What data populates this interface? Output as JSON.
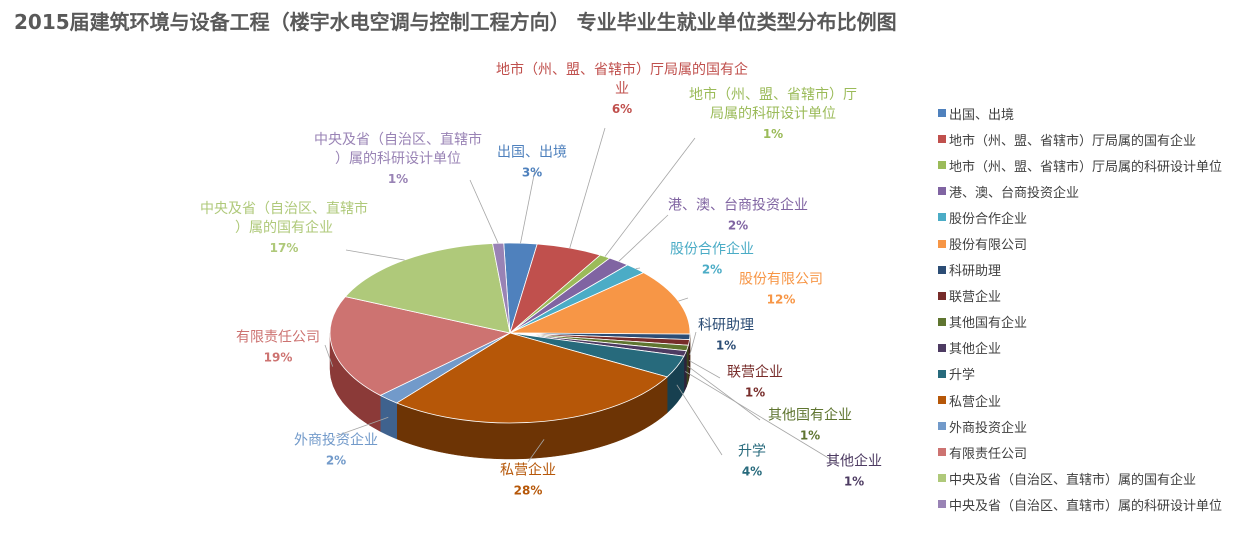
{
  "chart_data": {
    "type": "pie",
    "title": "2015届建筑环境与设备工程（楼宇水电空调与控制工程方向） 专业毕业生就业单位类型分布比例图",
    "legend_position": "right",
    "slices": [
      {
        "name": "出国、出境",
        "label": "出国、出境",
        "pct_label": "3%",
        "value": 3,
        "color": "#4F81BD",
        "dark": "#2C4D75"
      },
      {
        "name": "地市（州、盟、省辖市）厅局属的国有企业",
        "label": "地市（州、盟、省辖市）厅局属的国有企业",
        "pct_label": "6%",
        "value": 6,
        "color": "#C0504D",
        "dark": "#772C2A"
      },
      {
        "name": "地市（州、盟、省辖市）厅局属的科研设计单位",
        "label": "地市（州、盟、省辖市）厅局属的科研设计单位",
        "pct_label": "1%",
        "value": 1,
        "color": "#9BBB59",
        "dark": "#5F7530"
      },
      {
        "name": "港、澳、台商投资企业",
        "label": "港、澳、台商投资企业",
        "pct_label": "2%",
        "value": 2,
        "color": "#8064A2",
        "dark": "#4D3B62"
      },
      {
        "name": "股份合作企业",
        "label": "股份合作企业",
        "pct_label": "2%",
        "value": 2,
        "color": "#4BACC6",
        "dark": "#276A7C"
      },
      {
        "name": "股份有限公司",
        "label": "股份有限公司",
        "pct_label": "12%",
        "value": 12,
        "color": "#F79646",
        "dark": "#B65708"
      },
      {
        "name": "科研助理",
        "label": "科研助理",
        "pct_label": "1%",
        "value": 1,
        "color": "#2C4D75",
        "dark": "#1A2E46"
      },
      {
        "name": "联营企业",
        "label": "联营企业",
        "pct_label": "1%",
        "value": 1,
        "color": "#772C2A",
        "dark": "#471A19"
      },
      {
        "name": "其他国有企业",
        "label": "其他国有企业",
        "pct_label": "1%",
        "value": 1,
        "color": "#5F7530",
        "dark": "#39461D"
      },
      {
        "name": "其他企业",
        "label": "其他企业",
        "pct_label": "1%",
        "value": 1,
        "color": "#4D3B62",
        "dark": "#2E233B"
      },
      {
        "name": "升学",
        "label": "升学",
        "pct_label": "4%",
        "value": 4,
        "color": "#276A7C",
        "dark": "#174050"
      },
      {
        "name": "私营企业",
        "label": "私营企业",
        "pct_label": "28%",
        "value": 28,
        "color": "#B65708",
        "dark": "#6D3405"
      },
      {
        "name": "外商投资企业",
        "label": "外商投资企业",
        "pct_label": "2%",
        "value": 2,
        "color": "#729ACA",
        "dark": "#3F628E"
      },
      {
        "name": "有限责任公司",
        "label": "有限责任公司",
        "pct_label": "19%",
        "value": 19,
        "color": "#CD7371",
        "dark": "#8B3A38"
      },
      {
        "name": "中央及省（自治区、直辖市）属的国有企业",
        "label": "中央及省（自治区、直辖市）属的国有企业",
        "pct_label": "17%",
        "value": 17,
        "color": "#AFC97A",
        "dark": "#6C8A3A"
      },
      {
        "name": "中央及省（自治区、直辖市）属的科研设计单位",
        "label": "中央及省（自治区、直辖市）属的科研设计单位",
        "pct_label": "1%",
        "value": 1,
        "color": "#9983B5",
        "dark": "#5C4A75"
      }
    ]
  }
}
